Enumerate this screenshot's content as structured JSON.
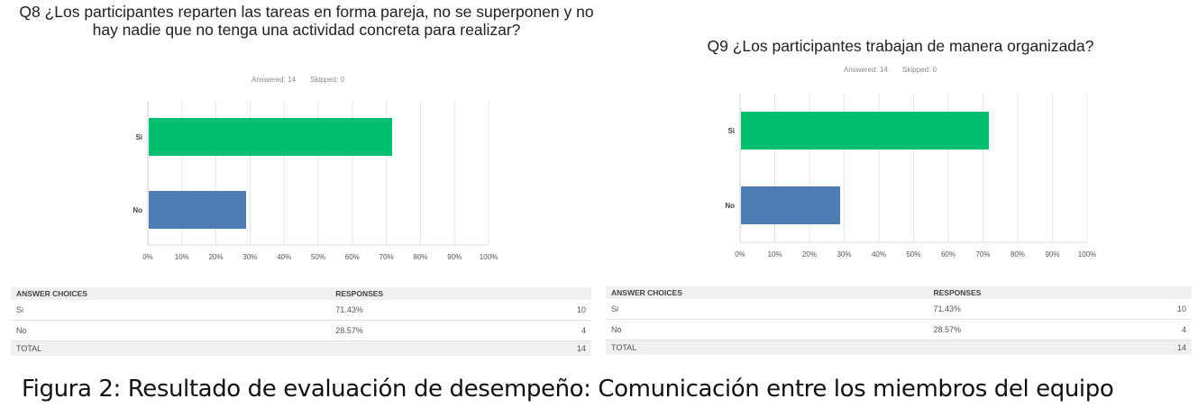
{
  "chart_data": [
    {
      "type": "bar",
      "orientation": "horizontal",
      "title": "Q8 ¿Los participantes reparten las tareas en forma pareja, no se superponen y no hay nadie que no tenga una actividad concreta para realizar?",
      "answered": "Answered: 14",
      "skipped": "Skipped: 0",
      "categories": [
        "Si",
        "No"
      ],
      "values": [
        71.43,
        28.57
      ],
      "colors": [
        "#00bf6f",
        "#507cb6"
      ],
      "xticks": [
        "0%",
        "10%",
        "20%",
        "30%",
        "40%",
        "50%",
        "60%",
        "70%",
        "80%",
        "90%",
        "100%"
      ],
      "xlim": [
        0,
        100
      ],
      "grid": true,
      "table": {
        "headers": [
          "ANSWER CHOICES",
          "RESPONSES"
        ],
        "rows": [
          {
            "choice": "Si",
            "pct": "71.43%",
            "count": "10"
          },
          {
            "choice": "No",
            "pct": "28.57%",
            "count": "4"
          }
        ],
        "total_label": "TOTAL",
        "total": "14"
      }
    },
    {
      "type": "bar",
      "orientation": "horizontal",
      "title": "Q9 ¿Los participantes trabajan de manera organizada?",
      "answered": "Answered: 14",
      "skipped": "Skipped: 0",
      "categories": [
        "Si",
        "No"
      ],
      "values": [
        71.43,
        28.57
      ],
      "colors": [
        "#00bf6f",
        "#507cb6"
      ],
      "xticks": [
        "0%",
        "10%",
        "20%",
        "30%",
        "40%",
        "50%",
        "60%",
        "70%",
        "80%",
        "90%",
        "100%"
      ],
      "xlim": [
        0,
        100
      ],
      "grid": true,
      "table": {
        "headers": [
          "ANSWER CHOICES",
          "RESPONSES"
        ],
        "rows": [
          {
            "choice": "Si",
            "pct": "71.43%",
            "count": "10"
          },
          {
            "choice": "No",
            "pct": "28.57%",
            "count": "4"
          }
        ],
        "total_label": "TOTAL",
        "total": "14"
      }
    }
  ],
  "caption": "Figura 2: Resultado de evaluación de desempeño: Comunicación entre los miembros del equipo"
}
